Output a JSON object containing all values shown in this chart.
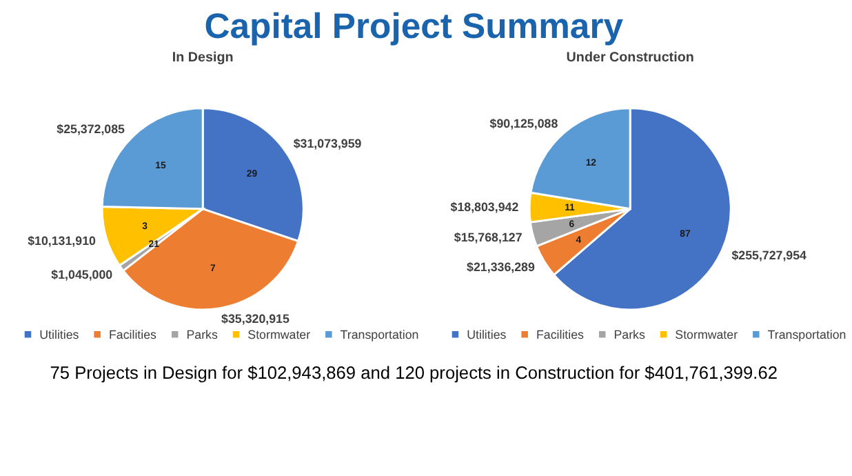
{
  "chart_data": [
    {
      "type": "other",
      "title": "Capital Project Summary"
    },
    {
      "type": "pie",
      "title": "In Design",
      "categories": [
        "Utilities",
        "Facilities",
        "Parks",
        "Stormwater",
        "Transportation"
      ],
      "values": [
        31073959,
        35320915,
        1045000,
        10131910,
        25372085
      ],
      "colors": [
        "#4472c4",
        "#ed7d31",
        "#a5a5a5",
        "#ffc000",
        "#5b9bd5"
      ],
      "value_labels": [
        "$31,073,959",
        "$35,320,915",
        "$1,045,000",
        "$10,131,910",
        "$25,372,085"
      ],
      "annotations": [
        {
          "text": "29",
          "x": "Utilities"
        },
        {
          "text": "7",
          "x": "Facilities"
        },
        {
          "text": "21",
          "x": "Parks"
        },
        {
          "text": "3",
          "x": "Stormwater"
        },
        {
          "text": "15",
          "x": "Transportation"
        }
      ],
      "legend": "bottom"
    },
    {
      "type": "pie",
      "title": "Under Construction",
      "categories": [
        "Utilities",
        "Facilities",
        "Parks",
        "Stormwater",
        "Transportation"
      ],
      "values": [
        255727954,
        21336289,
        15768127,
        18803942,
        90125088
      ],
      "colors": [
        "#4472c4",
        "#ed7d31",
        "#a5a5a5",
        "#ffc000",
        "#5b9bd5"
      ],
      "value_labels": [
        "$255,727,954",
        "$21,336,289",
        "$15,768,127",
        "$18,803,942",
        "$90,125,088"
      ],
      "annotations": [
        {
          "text": "87",
          "x": "Utilities"
        },
        {
          "text": "4",
          "x": "Facilities"
        },
        {
          "text": "6",
          "x": "Parks"
        },
        {
          "text": "11",
          "x": "Stormwater"
        },
        {
          "text": "12",
          "x": "Transportation"
        }
      ],
      "legend": "bottom"
    },
    {
      "type": "other",
      "annotations": [
        "75 Projects in Design for $102,943,869 and 120 projects in Construction  for $401,761,399.62"
      ]
    }
  ]
}
